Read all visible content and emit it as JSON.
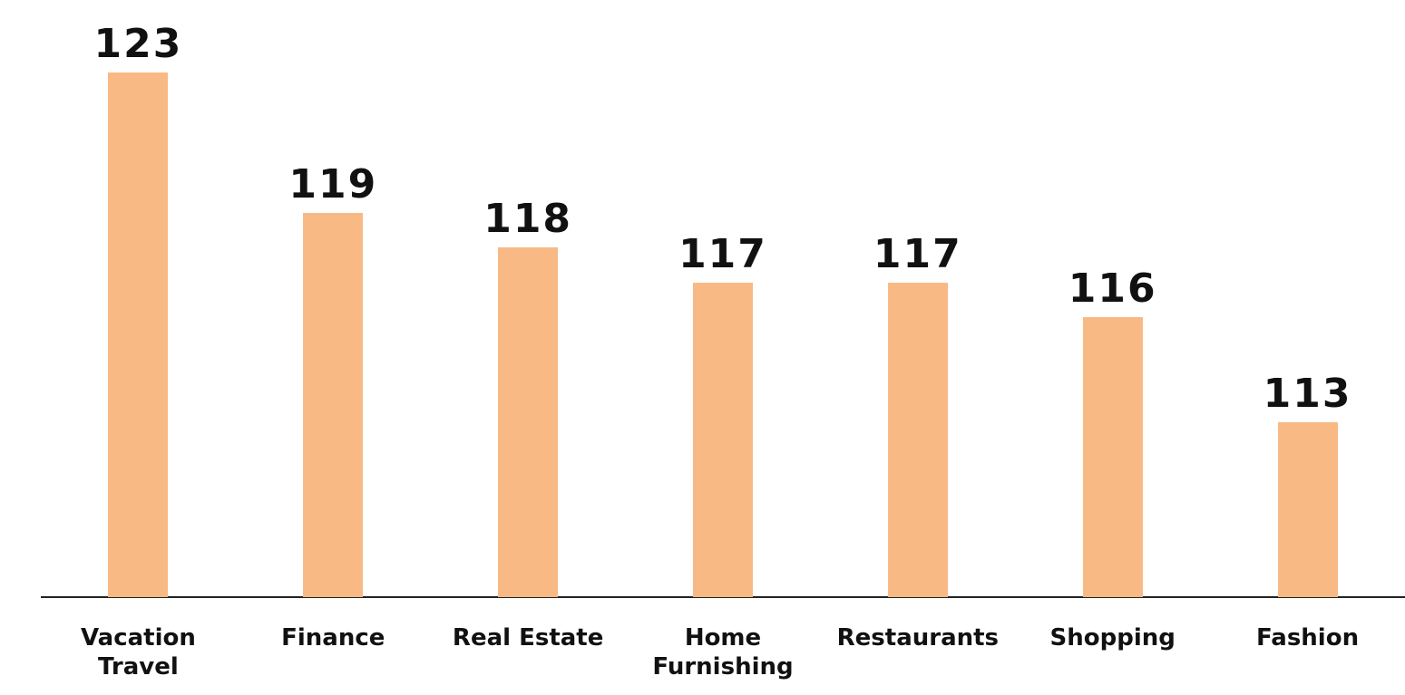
{
  "chart_data": {
    "type": "bar",
    "categories": [
      "Vacation Travel",
      "Finance",
      "Real Estate",
      "Home Furnishing",
      "Restaurants",
      "Shopping",
      "Fashion"
    ],
    "values": [
      123,
      119,
      118,
      117,
      117,
      116,
      113
    ],
    "color": "#f9b984",
    "ylim": [
      108,
      125
    ]
  }
}
